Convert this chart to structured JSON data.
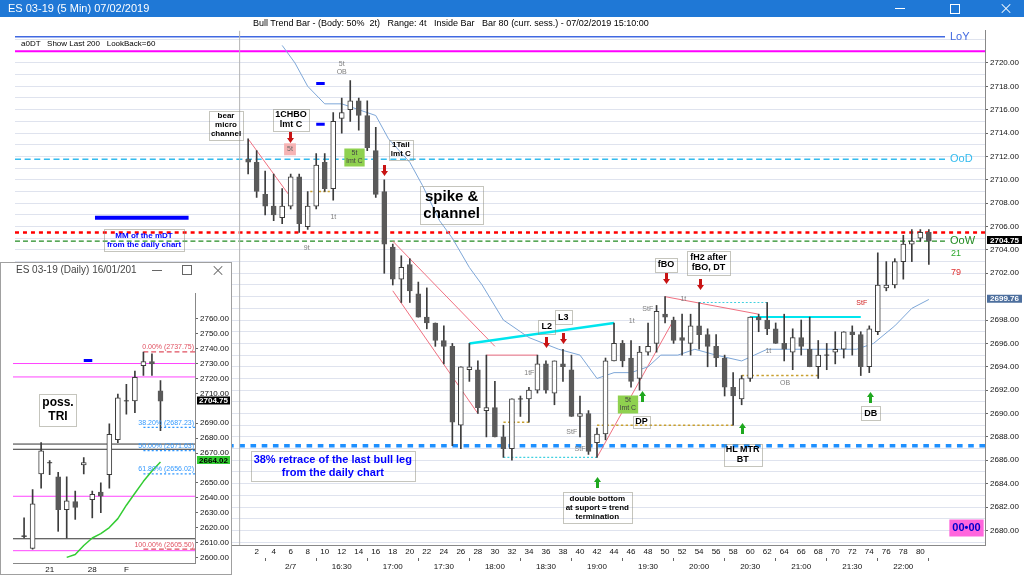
{
  "chart_data": [
    {
      "type": "candlestick",
      "title": "ES 03-19 (5 Min) 07/02/2019",
      "subtitle": "Bull Trend Bar - (Body: 50%  2t)   Range: 4t   Inside Bar   Bar 80 (curr. sess.) - 07/02/2019 15:10:00",
      "x": [
        1,
        2,
        3,
        4,
        5,
        6,
        7,
        8,
        9,
        10,
        11,
        12,
        13,
        14,
        15,
        16,
        17,
        18,
        19,
        20,
        21,
        22,
        23,
        24,
        25,
        26,
        27,
        28,
        29,
        30,
        31,
        32,
        33,
        34,
        35,
        36,
        37,
        38,
        39,
        40,
        41,
        42,
        43,
        44,
        45,
        46,
        47,
        48,
        49,
        50,
        51,
        52,
        53,
        54,
        55,
        56,
        57,
        58,
        59,
        60,
        61,
        62,
        63,
        64,
        65,
        66,
        67,
        68,
        69,
        70,
        71,
        72,
        73,
        74,
        75,
        76,
        77,
        78,
        79,
        80,
        81
      ],
      "ohlc": [
        [
          2711.75,
          2713.5,
          2710.5,
          2711.5
        ],
        [
          2711.5,
          2712.5,
          2708.5,
          2709
        ],
        [
          2708.75,
          2710.75,
          2707,
          2707.75
        ],
        [
          2707.75,
          2710.5,
          2706.5,
          2707
        ],
        [
          2706.75,
          2709.25,
          2706.25,
          2707.75
        ],
        [
          2707.75,
          2710.5,
          2707.5,
          2710.25
        ],
        [
          2710.25,
          2710.5,
          2705.5,
          2706.25
        ],
        [
          2706,
          2709,
          2705.75,
          2707.75
        ],
        [
          2707.75,
          2712.25,
          2707.5,
          2711.25
        ],
        [
          2711.5,
          2712.25,
          2709,
          2709.25
        ],
        [
          2709.25,
          2715.75,
          2708.25,
          2715
        ],
        [
          2715.25,
          2717,
          2714,
          2715.75
        ],
        [
          2716,
          2718.5,
          2715,
          2716.75
        ],
        [
          2716.75,
          2717,
          2714.25,
          2715.5
        ],
        [
          2715.5,
          2716.75,
          2712.5,
          2712.75
        ],
        [
          2712.5,
          2714.5,
          2708.5,
          2708.75
        ],
        [
          2709,
          2710,
          2702,
          2704.5
        ],
        [
          2704.25,
          2704.5,
          2701,
          2701.5
        ],
        [
          2701.5,
          2703.5,
          2699.5,
          2702.5
        ],
        [
          2702.75,
          2703.25,
          2699.5,
          2700.5
        ],
        [
          2700.25,
          2701.25,
          2698.25,
          2698.25
        ],
        [
          2698.25,
          2700.75,
          2697.25,
          2697.75
        ],
        [
          2697.75,
          2697.75,
          2695.75,
          2696.25
        ],
        [
          2696.25,
          2697.5,
          2694.25,
          2695.75
        ],
        [
          2695.75,
          2696,
          2687.25,
          2689.25
        ],
        [
          2689,
          2694,
          2687,
          2694
        ],
        [
          2693.75,
          2696,
          2692.75,
          2694
        ],
        [
          2693.75,
          2694.5,
          2690,
          2690.5
        ],
        [
          2690.25,
          2695,
          2688,
          2690.5
        ],
        [
          2690.5,
          2692.75,
          2688,
          2688
        ],
        [
          2688,
          2689,
          2686.25,
          2687
        ],
        [
          2687,
          2691.25,
          2686,
          2691.25
        ],
        [
          2691.25,
          2691.5,
          2689.75,
          2691.25
        ],
        [
          2691.25,
          2692.25,
          2689.25,
          2692
        ],
        [
          2692,
          2695,
          2691.75,
          2694.25
        ],
        [
          2694.25,
          2694.5,
          2691.75,
          2692
        ],
        [
          2691.75,
          2694.5,
          2690.75,
          2694.5
        ],
        [
          2694.25,
          2695.5,
          2692.75,
          2694
        ],
        [
          2693.75,
          2695,
          2689.75,
          2689.75
        ],
        [
          2689.75,
          2691.5,
          2688,
          2690
        ],
        [
          2690,
          2690.25,
          2686.5,
          2686.75
        ],
        [
          2687.5,
          2688.75,
          2686.25,
          2688.25
        ],
        [
          2688.25,
          2694.75,
          2687.75,
          2694.5
        ],
        [
          2694.5,
          2697.75,
          2694.5,
          2696
        ],
        [
          2696,
          2696.25,
          2694,
          2694.5
        ],
        [
          2694.75,
          2696.25,
          2692.25,
          2692.75
        ],
        [
          2693,
          2695.75,
          2692,
          2695.25
        ],
        [
          2695.25,
          2697.75,
          2695,
          2695.75
        ],
        [
          2696,
          2699.25,
          2695.25,
          2698.75
        ],
        [
          2698.5,
          2700,
          2697.75,
          2698.25
        ],
        [
          2698,
          2698.25,
          2696,
          2696.25
        ],
        [
          2696.5,
          2698.5,
          2695,
          2696.25
        ],
        [
          2696,
          2698.5,
          2695,
          2697.5
        ],
        [
          2697.5,
          2699.5,
          2695.5,
          2696.75
        ],
        [
          2696.75,
          2697.25,
          2694,
          2695.75
        ],
        [
          2695.75,
          2696.75,
          2694,
          2694.75
        ],
        [
          2694.75,
          2695,
          2691.5,
          2692.25
        ],
        [
          2692.25,
          2693.5,
          2689,
          2691.5
        ],
        [
          2691.25,
          2693.25,
          2690.75,
          2693
        ],
        [
          2693,
          2698.25,
          2692.75,
          2698.25
        ],
        [
          2698.25,
          2698.5,
          2697,
          2698
        ],
        [
          2698,
          2699.5,
          2696.75,
          2697.25
        ],
        [
          2697.25,
          2697.75,
          2696,
          2696
        ],
        [
          2696,
          2698.5,
          2694.5,
          2695.5
        ],
        [
          2695.25,
          2697.25,
          2693.75,
          2696.5
        ],
        [
          2696.5,
          2698,
          2695,
          2695.75
        ],
        [
          2695.5,
          2698.25,
          2694,
          2694
        ],
        [
          2694,
          2696.25,
          2693,
          2695
        ],
        [
          2695,
          2696,
          2693.75,
          2695
        ],
        [
          2695.25,
          2697,
          2694.25,
          2695.5
        ],
        [
          2695.5,
          2697,
          2694.75,
          2697
        ],
        [
          2697,
          2697.5,
          2695,
          2696.75
        ],
        [
          2696.75,
          2697,
          2693.25,
          2694
        ],
        [
          2694,
          2697.5,
          2693.5,
          2697.25
        ],
        [
          2697,
          2703.75,
          2696.75,
          2701
        ],
        [
          2700.75,
          2703,
          2700.5,
          2701
        ],
        [
          2701,
          2703.25,
          2700.75,
          2703
        ],
        [
          2703,
          2705.25,
          2701.5,
          2704.5
        ],
        [
          2704.5,
          2705.75,
          2703,
          2704.75
        ],
        [
          2705,
          2705.75,
          2704.75,
          2705.5
        ],
        [
          2705.5,
          2705.75,
          2702.75,
          2704.75
        ]
      ],
      "xlim": [
        -26.4,
        87.6
      ],
      "xticks": [
        2,
        4,
        6,
        8,
        10,
        12,
        14,
        16,
        18,
        20,
        22,
        24,
        26,
        28,
        30,
        32,
        34,
        36,
        38,
        40,
        42,
        44,
        46,
        48,
        50,
        52,
        54,
        56,
        58,
        60,
        62,
        64,
        66,
        68,
        70,
        72,
        74,
        76,
        78,
        80
      ],
      "x2lim": [
        13.3,
        22.8
      ],
      "x2ticks": [
        {
          "value": 16,
          "label": "2/7"
        },
        {
          "value": 16.5,
          "label": "16:30"
        },
        {
          "value": 17,
          "label": "17:00"
        },
        {
          "value": 17.5,
          "label": "17:30"
        },
        {
          "value": 18,
          "label": "18:00"
        },
        {
          "value": 18.5,
          "label": "18:30"
        },
        {
          "value": 19,
          "label": "19:00"
        },
        {
          "value": 19.5,
          "label": "19:30"
        },
        {
          "value": 20,
          "label": "20:00"
        },
        {
          "value": 20.5,
          "label": "20:30"
        },
        {
          "value": 21,
          "label": "21:00"
        },
        {
          "value": 21.5,
          "label": "21:30"
        },
        {
          "value": 22,
          "label": "22:00"
        }
      ],
      "ylim": [
        2678.75,
        2722.75
      ],
      "yticks": [
        {
          "value": 2679,
          "label": null
        },
        {
          "value": 2680,
          "label": "2680.00"
        },
        {
          "value": 2681,
          "label": null
        },
        {
          "value": 2682,
          "label": "2682.00"
        },
        {
          "value": 2683,
          "label": null
        },
        {
          "value": 2684,
          "label": "2684.00"
        },
        {
          "value": 2685,
          "label": null
        },
        {
          "value": 2686,
          "label": "2686.00"
        },
        {
          "value": 2687,
          "label": null
        },
        {
          "value": 2688,
          "label": "2688.00"
        },
        {
          "value": 2689,
          "label": null
        },
        {
          "value": 2690,
          "label": "2690.00"
        },
        {
          "value": 2691,
          "label": null
        },
        {
          "value": 2692,
          "label": "2692.00"
        },
        {
          "value": 2693,
          "label": null
        },
        {
          "value": 2694,
          "label": "2694.00"
        },
        {
          "value": 2695,
          "label": null
        },
        {
          "value": 2696,
          "label": "2696.00"
        },
        {
          "value": 2697,
          "label": null
        },
        {
          "value": 2698,
          "label": "2698.00"
        },
        {
          "value": 2699,
          "label": null
        },
        {
          "value": 2700,
          "label": null
        },
        {
          "value": 2701,
          "label": null
        },
        {
          "value": 2702,
          "label": "2702.00"
        },
        {
          "value": 2703,
          "label": null
        },
        {
          "value": 2704,
          "label": "2704.00"
        },
        {
          "value": 2705,
          "label": null
        },
        {
          "value": 2706,
          "label": "2706.00"
        },
        {
          "value": 2707,
          "label": null
        },
        {
          "value": 2708,
          "label": "2708.00"
        },
        {
          "value": 2709,
          "label": null
        },
        {
          "value": 2710,
          "label": "2710.00"
        },
        {
          "value": 2711,
          "label": null
        },
        {
          "value": 2712,
          "label": "2712.00"
        },
        {
          "value": 2713,
          "label": null
        },
        {
          "value": 2714,
          "label": "2714.00"
        },
        {
          "value": 2715,
          "label": null
        },
        {
          "value": 2716,
          "label": "2716.00"
        },
        {
          "value": 2717,
          "label": null
        },
        {
          "value": 2718,
          "label": "2718.00"
        },
        {
          "value": 2719,
          "label": null
        },
        {
          "value": 2720,
          "label": "2720.00"
        },
        {
          "value": 2721,
          "label": null
        },
        {
          "value": 2722,
          "label": null
        }
      ],
      "grid": "y",
      "series": [
        {
          "type": "line",
          "color": "#7ea7d8",
          "x": [
            5,
            6.5,
            8,
            10,
            12,
            14,
            16,
            17.5,
            20,
            21.5,
            23.5,
            25,
            27,
            28.5,
            31,
            34,
            37.5,
            40,
            42,
            44,
            46,
            48,
            49.5,
            51.5,
            53.5,
            56,
            59,
            60.5,
            62,
            66,
            70,
            72.5,
            74.5,
            77,
            79,
            81
          ],
          "values": [
            2721.5,
            2720,
            2718,
            2716.5,
            2716.5,
            2716,
            2715.5,
            2713.5,
            2711.5,
            2709.5,
            2706.5,
            2705,
            2702.5,
            2701,
            2698,
            2696.5,
            2695.5,
            2695,
            2693,
            2693.5,
            2693.5,
            2694,
            2695,
            2695,
            2695.5,
            2695,
            2694.5,
            2695,
            2695.5,
            2695.5,
            2695.5,
            2695.5,
            2696,
            2697.5,
            2699,
            2699.76
          ]
        },
        {
          "type": "line",
          "color": "#00e5ee",
          "x": [
            27,
            44
          ],
          "values": [
            2696,
            2697.75
          ]
        },
        {
          "type": "line",
          "color": "#00e5ee",
          "x": [
            60,
            73
          ],
          "values": [
            2698.25,
            2698.25
          ]
        },
        {
          "type": "line",
          "color": "#40d0e0",
          "line_style": "dotted",
          "x": [
            31,
            42
          ],
          "values": [
            2686.25,
            2686.25
          ]
        },
        {
          "type": "line",
          "color": "#40d0e0",
          "line_style": "dotted",
          "x": [
            54,
            62
          ],
          "values": [
            2699.5,
            2699.5
          ]
        },
        {
          "type": "line",
          "color": "#c8a030",
          "line_style": "dotted",
          "x": [
            42,
            58
          ],
          "values": [
            2689,
            2689
          ]
        },
        {
          "type": "line",
          "color": "#c8a030",
          "line_style": "dotted",
          "x": [
            31,
            34
          ],
          "values": [
            2689.25,
            2689.25
          ]
        },
        {
          "type": "line",
          "color": "#c8a030",
          "line_style": "dotted",
          "x": [
            59,
            68
          ],
          "values": [
            2693.25,
            2693.25
          ]
        },
        {
          "type": "line",
          "color": "#c8a030",
          "line_style": "dotted",
          "x": [
            8.3,
            10.6
          ],
          "values": [
            2709,
            2709
          ]
        },
        {
          "type": "line",
          "color": "#f07080",
          "x": [
            1,
            6
          ],
          "values": [
            2713.5,
            2708.5
          ]
        },
        {
          "type": "line",
          "color": "#f07080",
          "x": [
            18,
            30
          ],
          "values": [
            2704.75,
            2695.75
          ]
        },
        {
          "type": "line",
          "color": "#f07080",
          "x": [
            18,
            28
          ],
          "values": [
            2700.5,
            2690
          ]
        },
        {
          "type": "line",
          "color": "#f07080",
          "x": [
            42,
            51
          ],
          "values": [
            2686.25,
            2698
          ]
        },
        {
          "type": "line",
          "color": "#f07080",
          "x": [
            50,
            61
          ],
          "values": [
            2700,
            2698.5
          ]
        },
        {
          "type": "line",
          "color": "#f07080",
          "x": [
            29,
            35
          ],
          "values": [
            2695,
            2695
          ]
        },
        {
          "type": "line",
          "color": "#0000ff",
          "x": [
            -17,
            -6
          ],
          "values": [
            2706.75,
            2706.75
          ]
        },
        {
          "type": "line",
          "color": "#0000ff",
          "x": [
            9,
            10
          ],
          "values": [
            2718.25,
            2718.25
          ]
        },
        {
          "type": "line",
          "color": "#0000ff",
          "x": [
            9,
            10
          ],
          "values": [
            2714.75,
            2714.75
          ]
        }
      ],
      "ref_lines": [
        {
          "axis": "y",
          "value": 2722.25,
          "label": "LoY",
          "color": "#4169e1"
        },
        {
          "axis": "y",
          "value": 2721,
          "color": "#ff00ff"
        },
        {
          "axis": "y",
          "value": 2711.75,
          "label": "OoD",
          "color": "#33bbee",
          "line_style": "dashed"
        },
        {
          "axis": "y",
          "value": 2705.5,
          "color": "#ff0000",
          "line_style": "dotted"
        },
        {
          "axis": "y",
          "value": 2704.75,
          "label": "OoW",
          "color": "#228b22",
          "line_style": "dashed"
        },
        {
          "axis": "y",
          "value": 2687.25,
          "color": "#1e90ff",
          "line_style": "dotted"
        },
        {
          "axis": "x",
          "value": 0,
          "color": "#b4b4b4"
        }
      ],
      "annotations": [
        "a0DT   Show Last 200   LookBack=60",
        "bear\nmicro\nchannel",
        "1CHBO\nlmt C",
        "1Tail\nlmt C",
        "spike &\nchannel",
        "MM of the mDT\nfrom the daily chart",
        "38% retrace of the last bull leg\nfrom the daily chart",
        "L2",
        "L3",
        "fBO",
        "fH2 after\nfBO, DT",
        "DP",
        "HL MTR\nBT",
        "double bottom\nat suport = trend\ntermination",
        "DB",
        "21",
        "79",
        "00•00",
        "2704.75",
        "2699.76",
        "5t\nOB",
        "5t",
        "5t\nlmt C",
        "1t",
        "9t",
        "1tF",
        "StF",
        "StF",
        "StF",
        "1t",
        "5t\nlmt C",
        "1t",
        "1t",
        "OB",
        "StF"
      ]
    },
    {
      "type": "candlestick",
      "title": "ES 03-19 (Daily) 16/01/201",
      "categories": [
        null,
        null,
        null,
        "21",
        null,
        null,
        null,
        null,
        "28",
        null,
        null,
        null,
        "F",
        null,
        null,
        null,
        null
      ],
      "ohlc": [
        [
          2614.5,
          2626.5,
          2613,
          2614
        ],
        [
          2606,
          2645.5,
          2605.5,
          2636
        ],
        [
          2656,
          2677,
          2646.5,
          2671.5
        ],
        [
          2663.5,
          2665,
          2655.5,
          2663.5
        ],
        [
          2654,
          2657,
          2617.5,
          2632
        ],
        [
          2632,
          2654,
          2613,
          2638
        ],
        [
          2637.5,
          2644.5,
          2625.5,
          2633.5
        ],
        [
          2662,
          2667,
          2656,
          2663.5
        ],
        [
          2638.75,
          2644.5,
          2626.5,
          2642.25
        ],
        [
          2643.75,
          2650,
          2630,
          2641
        ],
        [
          2655.5,
          2689.5,
          2646.5,
          2682.5
        ],
        [
          2679,
          2709.5,
          2677,
          2707
        ],
        [
          2705,
          2716,
          2696,
          2705
        ],
        [
          2705,
          2725,
          2697,
          2720.75
        ],
        [
          2728.5,
          2737.75,
          2722,
          2731.25
        ],
        [
          2731.25,
          2736.5,
          2722,
          2729.75
        ],
        [
          2711.75,
          2718.5,
          2685,
          2704.75
        ]
      ],
      "ylim": [
        2596.25,
        2776.75
      ],
      "yticks": [
        {
          "value": 2600,
          "label": "2600.00"
        },
        {
          "value": 2610,
          "label": "2610.00"
        },
        {
          "value": 2620,
          "label": "2620.00"
        },
        {
          "value": 2630,
          "label": "2630.00"
        },
        {
          "value": 2640,
          "label": "2640.00"
        },
        {
          "value": 2650,
          "label": "2650.00"
        },
        {
          "value": 2670,
          "label": "2670.00"
        },
        {
          "value": 2680,
          "label": "2680.00"
        },
        {
          "value": 2690,
          "label": "2690.00"
        },
        {
          "value": 2710,
          "label": "2710.00"
        },
        {
          "value": 2720,
          "label": "2720.00"
        },
        {
          "value": 2730,
          "label": "2730.00"
        },
        {
          "value": 2740,
          "label": "2740.00"
        },
        {
          "value": 2750,
          "label": "2750.00"
        },
        {
          "value": 2760,
          "label": "2760.00"
        }
      ],
      "series": [
        {
          "type": "line",
          "color": "#33cc33",
          "values": [
            null,
            null,
            null,
            null,
            null,
            2600,
            2602,
            2608,
            2613,
            2616,
            2620,
            2626,
            2635,
            2643,
            2651,
            2658,
            2664.02
          ]
        },
        {
          "type": "line",
          "color": "#0000ff",
          "values": [
            null,
            null,
            null,
            null,
            null,
            null,
            null,
            2732,
            2732,
            null,
            null,
            null,
            null,
            null,
            null,
            null,
            null
          ]
        }
      ],
      "ref_lines": [
        {
          "axis": "y",
          "value": 2737.75,
          "label": "0.00% (2737.75)",
          "color": "#e05060",
          "line_style": "dashed"
        },
        {
          "axis": "y",
          "value": 2687.23,
          "label": "38.20% (2687.23)",
          "color": "#3399ff",
          "line_style": "dotted"
        },
        {
          "axis": "y",
          "value": 2671.63,
          "label": "50.00% (2671.63)",
          "color": "#3399ff",
          "line_style": "dotted"
        },
        {
          "axis": "y",
          "value": 2656.02,
          "label": "61.80% (2656.02)",
          "color": "#3399ff",
          "line_style": "dotted"
        },
        {
          "axis": "y",
          "value": 2605.5,
          "label": "100.00% (2605.50)",
          "color": "#e05060",
          "line_style": "dashed"
        },
        {
          "axis": "y",
          "value": 2730,
          "color": "#ff44ff"
        },
        {
          "axis": "y",
          "value": 2721,
          "color": "#ff44ff"
        },
        {
          "axis": "y",
          "value": 2641,
          "color": "#ff44ff"
        },
        {
          "axis": "y",
          "value": 2604.5,
          "color": "#ff44ff"
        },
        {
          "axis": "y",
          "value": 2676,
          "color": "#333333"
        },
        {
          "axis": "y",
          "value": 2672.5,
          "color": "#333333"
        },
        {
          "axis": "y",
          "value": 2612.5,
          "color": "#333333"
        }
      ],
      "annotations": [
        "poss.\nTRI",
        "2704.75",
        "2664.02"
      ]
    }
  ]
}
